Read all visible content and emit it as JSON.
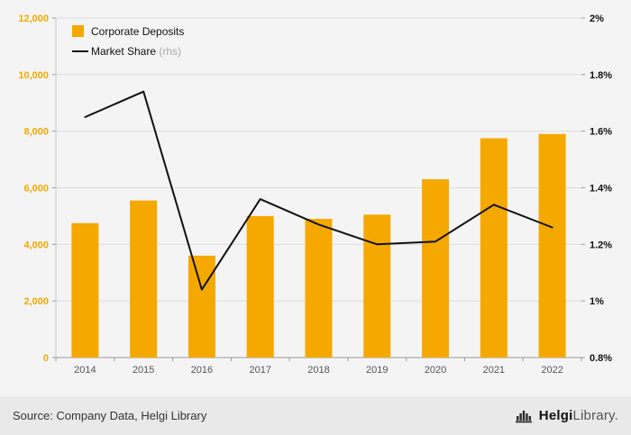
{
  "chart_data": {
    "type": "bar",
    "subtype": "bar+line dual axis",
    "title": "",
    "categories": [
      "2014",
      "2015",
      "2016",
      "2017",
      "2018",
      "2019",
      "2020",
      "2021",
      "2022"
    ],
    "series": [
      {
        "name": "Corporate Deposits",
        "type": "bar",
        "axis": "left",
        "color": "#F5A800",
        "values": [
          4750,
          5550,
          3600,
          5000,
          4900,
          5050,
          6300,
          7750,
          7900
        ]
      },
      {
        "name": "Market Share",
        "suffix": " (rhs)",
        "type": "line",
        "axis": "right",
        "color": "#111111",
        "values": [
          1.65,
          1.74,
          1.04,
          1.36,
          1.27,
          1.2,
          1.21,
          1.34,
          1.26
        ]
      }
    ],
    "left_axis": {
      "min": 0,
      "max": 12000,
      "color": "#F5A800",
      "ticks": [
        {
          "value": 0,
          "label": "0"
        },
        {
          "value": 2000,
          "label": "2,000"
        },
        {
          "value": 4000,
          "label": "4,000"
        },
        {
          "value": 6000,
          "label": "6,000"
        },
        {
          "value": 8000,
          "label": "8,000"
        },
        {
          "value": 10000,
          "label": "10,000"
        },
        {
          "value": 12000,
          "label": "12,000"
        }
      ]
    },
    "right_axis": {
      "min": 0.8,
      "max": 2,
      "color": "#111111",
      "ticks": [
        {
          "value": 0.8,
          "label": "0.8%"
        },
        {
          "value": 1.0,
          "label": "1%"
        },
        {
          "value": 1.2,
          "label": "1.2%"
        },
        {
          "value": 1.4,
          "label": "1.4%"
        },
        {
          "value": 1.6,
          "label": "1.6%"
        },
        {
          "value": 1.8,
          "label": "1.8%"
        },
        {
          "value": 2.0,
          "label": "2%"
        }
      ]
    },
    "grid": true,
    "legend_position": "top-left"
  },
  "footer": {
    "source": "Source: Company Data, Helgi Library",
    "logo": {
      "name": "Helgi",
      "suffix": "Library."
    }
  }
}
